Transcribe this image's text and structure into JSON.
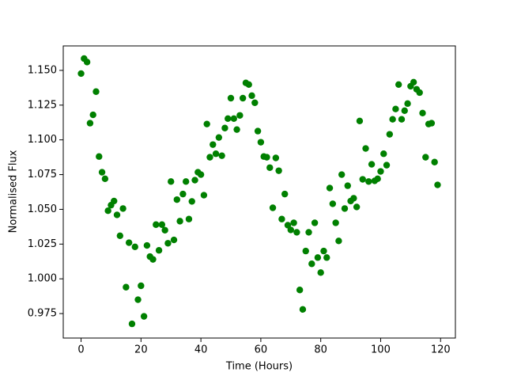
{
  "chart_data": {
    "type": "scatter",
    "xlabel": "Time (Hours)",
    "ylabel": "Normalised Flux",
    "color": "#008000",
    "x": [
      0,
      1,
      2,
      3,
      4,
      5,
      6,
      7,
      8,
      9,
      10,
      11,
      12,
      13,
      14,
      15,
      16,
      17,
      18,
      19,
      20,
      21,
      22,
      23,
      24,
      25,
      26,
      27,
      28,
      29,
      30,
      31,
      32,
      33,
      34,
      35,
      36,
      37,
      38,
      39,
      40,
      41,
      42,
      43,
      44,
      45,
      46,
      47,
      48,
      49,
      50,
      51,
      52,
      53,
      54,
      55,
      56,
      57,
      58,
      59,
      60,
      61,
      62,
      63,
      64,
      65,
      66,
      67,
      68,
      69,
      70,
      71,
      72,
      73,
      74,
      75,
      76,
      77,
      78,
      79,
      80,
      81,
      82,
      83,
      84,
      85,
      86,
      87,
      88,
      89,
      90,
      91,
      92,
      93,
      94,
      95,
      96,
      97,
      98,
      99,
      100,
      101,
      102,
      103,
      104,
      105,
      106,
      107,
      108,
      109,
      110,
      111,
      112,
      113,
      114,
      115,
      116,
      117,
      118,
      119
    ],
    "values": [
      1.1477,
      1.1585,
      1.156,
      1.112,
      1.118,
      1.1347,
      1.088,
      1.0767,
      1.072,
      1.049,
      1.053,
      1.056,
      1.046,
      1.031,
      1.0506,
      0.994,
      1.026,
      0.9676,
      1.023,
      0.985,
      0.995,
      0.973,
      1.024,
      1.016,
      1.014,
      1.039,
      1.0205,
      1.039,
      1.035,
      1.0256,
      1.07,
      1.028,
      1.057,
      1.0415,
      1.061,
      1.07,
      1.043,
      1.0557,
      1.071,
      1.0767,
      1.075,
      1.0602,
      1.1114,
      1.0875,
      1.0966,
      1.09,
      1.1017,
      1.0886,
      1.1085,
      1.1153,
      1.13,
      1.1153,
      1.1074,
      1.1176,
      1.13,
      1.141,
      1.1398,
      1.1318,
      1.1267,
      1.1063,
      1.0983,
      1.088,
      1.0875,
      1.08,
      1.0511,
      1.087,
      1.0778,
      1.043,
      1.061,
      1.0386,
      1.0352,
      1.0403,
      1.0335,
      0.992,
      0.978,
      1.02,
      1.0335,
      1.0108,
      1.0403,
      1.0153,
      1.0045,
      1.02,
      1.0153,
      1.0653,
      1.054,
      1.0403,
      1.0273,
      1.075,
      1.0506,
      1.067,
      1.056,
      1.058,
      1.0517,
      1.1136,
      1.0716,
      1.0938,
      1.07,
      1.0824,
      1.0705,
      1.072,
      1.0773,
      1.09,
      1.0818,
      1.104,
      1.1148,
      1.1222,
      1.1398,
      1.1148,
      1.121,
      1.1261,
      1.1386,
      1.1415,
      1.1364,
      1.134,
      1.1193,
      1.0875,
      1.1114,
      1.112,
      1.084,
      1.0676
    ],
    "xlim": [
      -5.95,
      124.95
    ],
    "xticks": [
      0,
      20,
      40,
      60,
      80,
      100,
      120
    ],
    "ylim": [
      0.9574,
      1.1676
    ],
    "yticks": [
      {
        "value": 0.975,
        "label": "0.975"
      },
      {
        "value": 1.0,
        "label": "1.000"
      },
      {
        "value": 1.025,
        "label": "1.025"
      },
      {
        "value": 1.05,
        "label": "1.050"
      },
      {
        "value": 1.075,
        "label": "1.075"
      },
      {
        "value": 1.1,
        "label": "1.100"
      },
      {
        "value": 1.125,
        "label": "1.125"
      },
      {
        "value": 1.15,
        "label": "1.150"
      }
    ],
    "grid": false
  }
}
